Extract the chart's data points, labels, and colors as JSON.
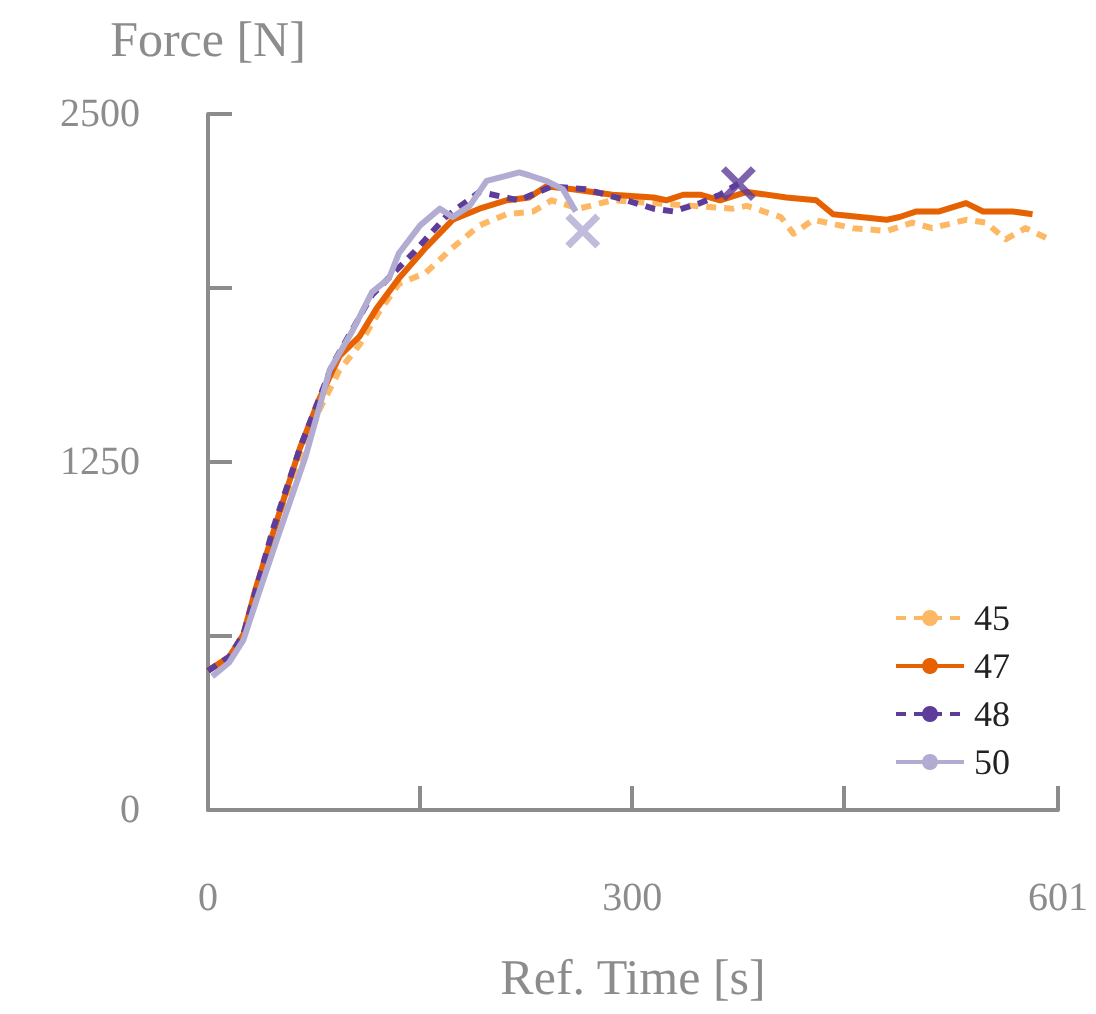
{
  "chart_data": {
    "type": "line",
    "xlabel": "Ref. Time [s]",
    "ylabel": "Force [N]",
    "xlim": [
      0,
      601
    ],
    "xticks": [
      0,
      {
        "value": 150,
        "label": null
      },
      300,
      {
        "value": 450,
        "label": null
      },
      601
    ],
    "ylim": [
      0,
      2500
    ],
    "yticks": [
      0,
      {
        "value": 625,
        "label": null
      },
      1250,
      {
        "value": 1875,
        "label": null
      },
      2500
    ],
    "grid": false,
    "legend": "bottom right",
    "marker": "none",
    "series": [
      {
        "name": "45",
        "color": "#fdb863",
        "line_style": "dashed",
        "x": [
          0,
          15,
          25,
          34,
          50,
          65,
          79,
          93,
          107,
          121,
          135,
          154,
          173,
          192,
          211,
          230,
          243,
          262,
          286,
          315,
          343,
          371,
          381,
          405,
          414,
          428,
          456,
          480,
          498,
          512,
          536,
          550,
          564,
          578,
          595
        ],
        "values": [
          500,
          550,
          630,
          800,
          1040,
          1250,
          1440,
          1580,
          1670,
          1790,
          1890,
          1930,
          2020,
          2100,
          2140,
          2150,
          2190,
          2160,
          2190,
          2180,
          2170,
          2160,
          2170,
          2130,
          2070,
          2120,
          2090,
          2080,
          2110,
          2090,
          2120,
          2110,
          2050,
          2090,
          2050
        ]
      },
      {
        "name": "47",
        "color": "#e66101",
        "line_style": "solid",
        "x": [
          0,
          15,
          25,
          34,
          50,
          65,
          79,
          93,
          107,
          119,
          135,
          154,
          173,
          192,
          211,
          227,
          239,
          258,
          286,
          315,
          324,
          336,
          348,
          362,
          381,
          409,
          430,
          442,
          461,
          480,
          489,
          501,
          517,
          536,
          548,
          569,
          583
        ],
        "values": [
          500,
          550,
          630,
          800,
          1060,
          1300,
          1480,
          1630,
          1700,
          1800,
          1910,
          2020,
          2120,
          2160,
          2190,
          2200,
          2240,
          2230,
          2210,
          2200,
          2190,
          2210,
          2210,
          2190,
          2220,
          2200,
          2190,
          2140,
          2130,
          2120,
          2130,
          2150,
          2150,
          2180,
          2150,
          2150,
          2140
        ]
      },
      {
        "name": "48",
        "color": "#5e3c99",
        "line_style": "dashed",
        "x": [
          0,
          15,
          25,
          46,
          65,
          88,
          116,
          145,
          168,
          192,
          220,
          243,
          267,
          296,
          315,
          329,
          348,
          362,
          375
        ],
        "values": [
          500,
          550,
          630,
          1010,
          1300,
          1600,
          1850,
          2000,
          2130,
          2220,
          2190,
          2240,
          2230,
          2190,
          2160,
          2150,
          2180,
          2210,
          2250
        ]
      },
      {
        "name": "50",
        "color": "#b2abd2",
        "line_style": "solid",
        "x": [
          3,
          15,
          25,
          36,
          50,
          69,
          86,
          102,
          116,
          128,
          135,
          150,
          164,
          173,
          185,
          197,
          220,
          227,
          239,
          251,
          260
        ],
        "values": [
          480,
          530,
          610,
          780,
          990,
          1270,
          1580,
          1720,
          1860,
          1910,
          2000,
          2100,
          2160,
          2130,
          2170,
          2260,
          2290,
          2280,
          2260,
          2230,
          2150
        ]
      },
      {
        "type": "scatter",
        "marker": "cross",
        "color": "#5e3c99",
        "x": [
          375
        ],
        "values": [
          2250
        ]
      },
      {
        "type": "scatter",
        "marker": "cross",
        "color": "#b2abd2",
        "x": [
          265
        ],
        "values": [
          2080
        ]
      }
    ]
  }
}
